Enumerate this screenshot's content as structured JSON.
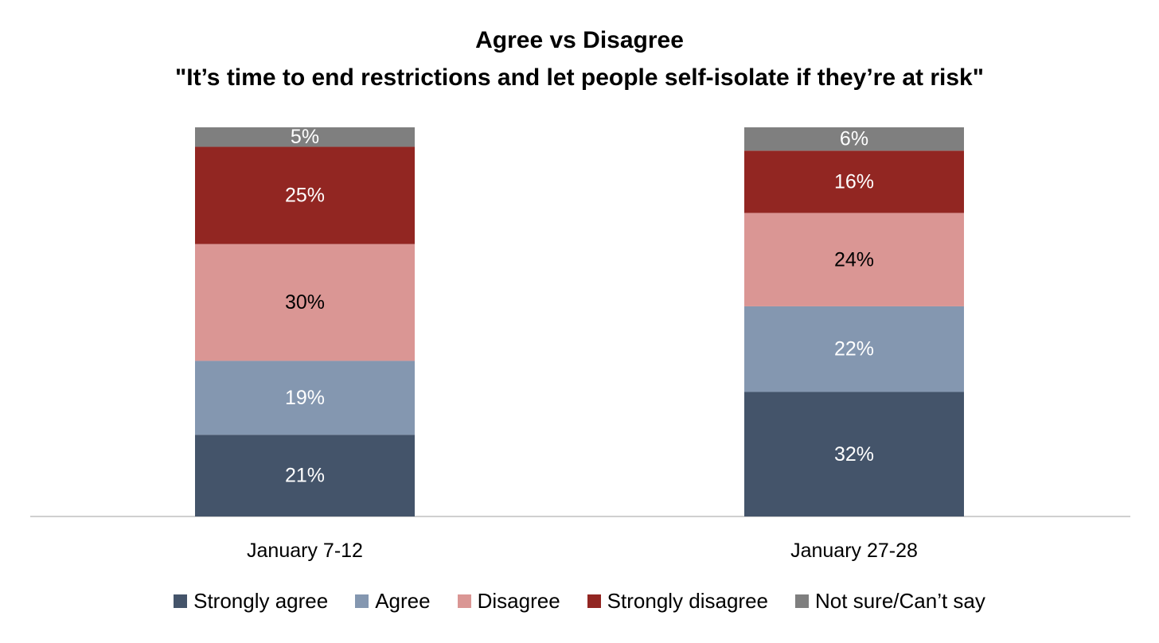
{
  "chart_data": {
    "type": "bar",
    "stacked": true,
    "title": "Agree vs Disagree",
    "subtitle": "\"It’s time to end restrictions and let people self-isolate if they’re at risk\"",
    "categories": [
      "January 7-12",
      "January 27-28"
    ],
    "ylim": [
      0,
      100
    ],
    "grid": false,
    "legend_position": "bottom",
    "series": [
      {
        "name": "Strongly agree",
        "values": [
          21,
          32
        ],
        "labels": [
          "21%",
          "32%"
        ],
        "color": "#44546a",
        "label_color": "#ffffff"
      },
      {
        "name": "Agree",
        "values": [
          19,
          22
        ],
        "labels": [
          "19%",
          "22%"
        ],
        "color": "#8497b0",
        "label_color": "#ffffff"
      },
      {
        "name": "Disagree",
        "values": [
          30,
          24
        ],
        "labels": [
          "30%",
          "24%"
        ],
        "color": "#da9694",
        "label_color": "#000000"
      },
      {
        "name": "Strongly disagree",
        "values": [
          25,
          16
        ],
        "labels": [
          "25%",
          "16%"
        ],
        "color": "#922622",
        "label_color": "#ffffff"
      },
      {
        "name": "Not sure/Can’t say",
        "values": [
          5,
          6
        ],
        "labels": [
          "5%",
          "6%"
        ],
        "color": "#7f7f7f",
        "label_color": "#ffffff"
      }
    ]
  }
}
